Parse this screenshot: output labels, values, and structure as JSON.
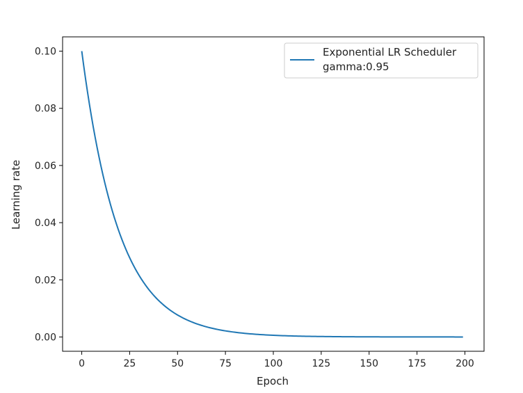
{
  "chart_data": {
    "type": "line",
    "title": "",
    "xlabel": "Epoch",
    "ylabel": "Learning rate",
    "xlim": [
      -10,
      210
    ],
    "ylim": [
      -0.005,
      0.105
    ],
    "xticks": [
      0,
      25,
      50,
      75,
      100,
      125,
      150,
      175,
      200
    ],
    "yticks": [
      0.0,
      0.02,
      0.04,
      0.06,
      0.08,
      0.1
    ],
    "ytick_labels": [
      "0.00",
      "0.02",
      "0.04",
      "0.06",
      "0.08",
      "0.10"
    ],
    "grid": false,
    "legend_position": "top-right",
    "legend_lines": [
      "Exponential LR Scheduler",
      "gamma:0.95"
    ],
    "series": [
      {
        "name": "Exponential LR Scheduler gamma:0.95",
        "color": "#1f77b4",
        "initial_lr": 0.1,
        "gamma": 0.95,
        "epoch_start": 0,
        "epoch_end": 199
      }
    ]
  }
}
